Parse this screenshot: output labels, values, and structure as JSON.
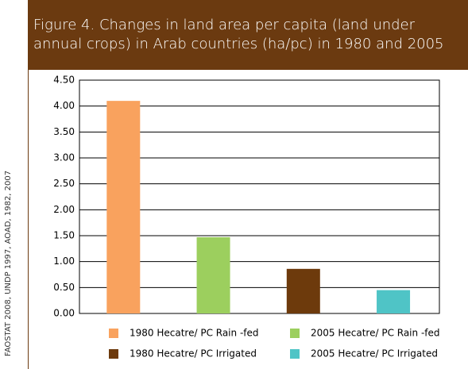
{
  "chart_data": {
    "type": "bar",
    "title": "Figure 4. Changes in land area per capita (land under annual crops) in Arab countries (ha/pc) in 1980 and 2005",
    "source": "FAOSTAT 2008, UNDP 1997, AOAD, 1982, 2007",
    "series": [
      {
        "name": "1980 Hecatre/ PC Rain -fed",
        "color": "#f9a25e",
        "values": [
          4.1
        ]
      },
      {
        "name": "2005 Hecatre/ PC Rain -fed",
        "color": "#9ccf5e",
        "values": [
          1.47
        ]
      },
      {
        "name": "1980 Hecatre/ PC Irrigated",
        "color": "#6d3a0c",
        "values": [
          0.86
        ]
      },
      {
        "name": "2005 Hecatre/ PC Irrigated",
        "color": "#4fc4c6",
        "values": [
          0.45
        ]
      }
    ],
    "ylim": [
      0,
      4.5
    ],
    "yticks": [
      {
        "value": 0,
        "label": "0.00"
      },
      {
        "value": 0.5,
        "label": "0.50"
      },
      {
        "value": 1,
        "label": "1.00"
      },
      {
        "value": 1.5,
        "label": "1.50"
      },
      {
        "value": 2,
        "label": "2.00"
      },
      {
        "value": 2.5,
        "label": "2.50"
      },
      {
        "value": 3,
        "label": "3.00"
      },
      {
        "value": 3.5,
        "label": "3.50"
      },
      {
        "value": 4,
        "label": "4.00"
      },
      {
        "value": 4.5,
        "label": "4.50"
      }
    ],
    "grid": true
  }
}
